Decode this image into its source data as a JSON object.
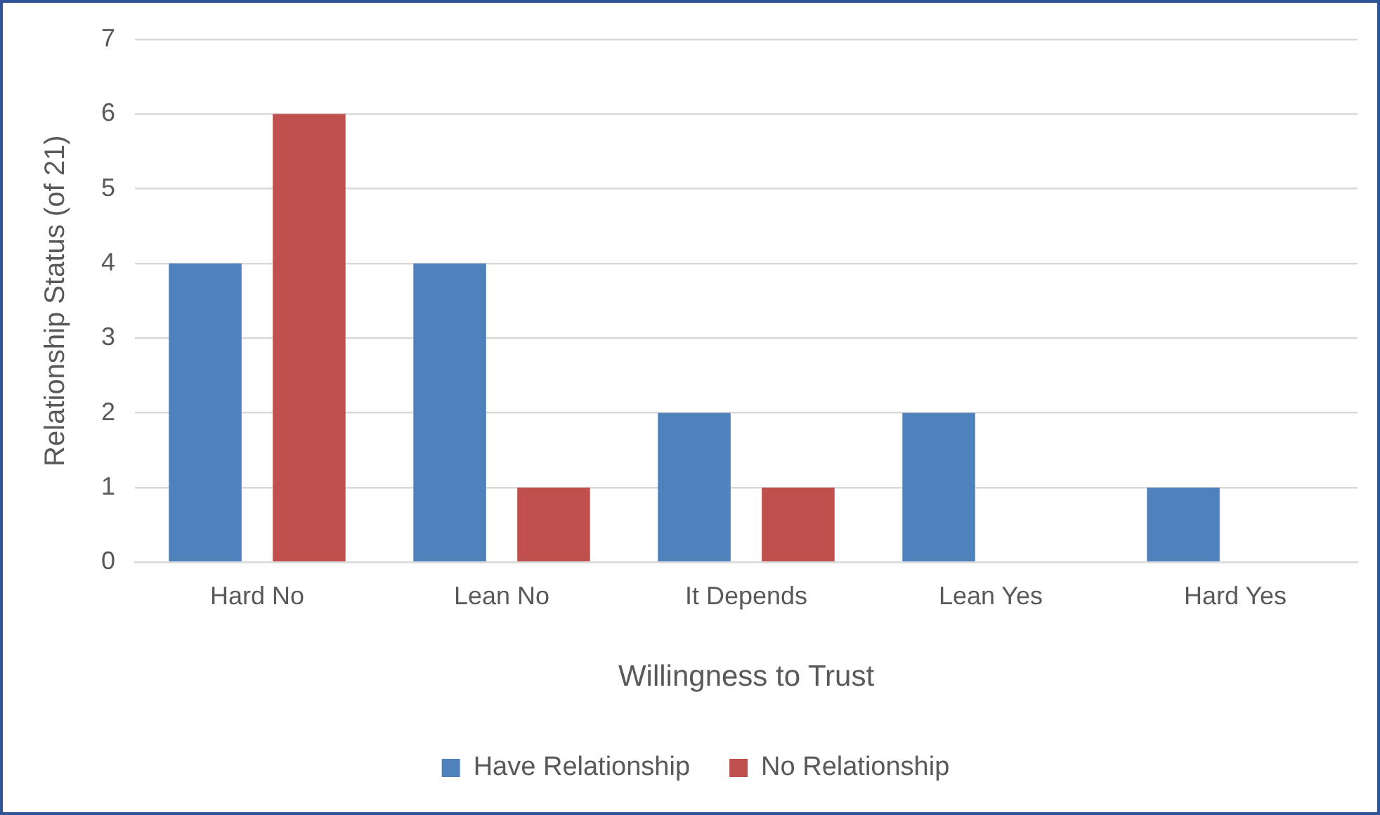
{
  "chart_data": {
    "type": "bar",
    "xlabel": "Willingness to Trust",
    "ylabel": "Relationship Status (of 21)",
    "categories": [
      "Hard No",
      "Lean No",
      "It Depends",
      "Lean Yes",
      "Hard Yes"
    ],
    "series": [
      {
        "name": "Have Relationship",
        "color": "#4f81bd",
        "values": [
          4,
          4,
          2,
          2,
          1
        ]
      },
      {
        "name": "No Relationship",
        "color": "#c0504d",
        "values": [
          6,
          1,
          1,
          0,
          0
        ]
      }
    ],
    "ylim": [
      0,
      7
    ],
    "yticks": [
      0,
      1,
      2,
      3,
      4,
      5,
      6,
      7
    ],
    "grid": "y",
    "legend": "bottom"
  }
}
